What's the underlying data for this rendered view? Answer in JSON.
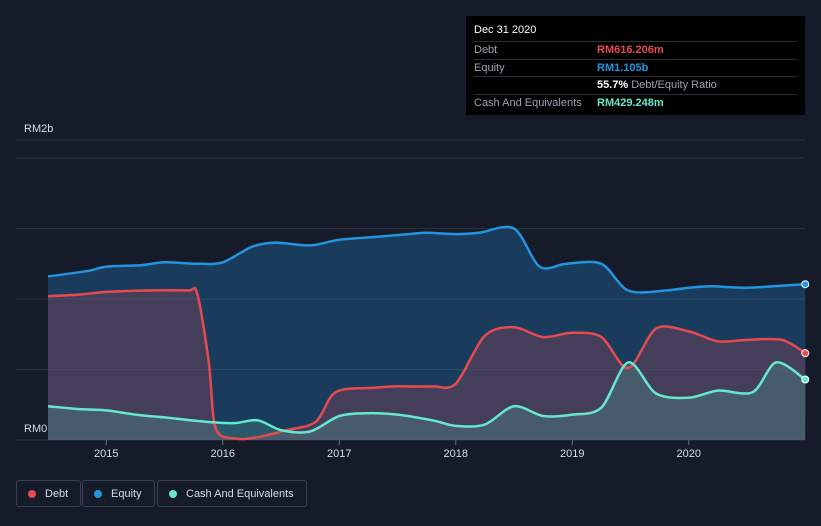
{
  "chart_data": {
    "type": "area",
    "y_labels": [
      "RM2b",
      "RM0"
    ],
    "ylim": [
      0,
      2.0
    ],
    "y_unit": "RM billions",
    "x_ticks": [
      "2015",
      "2016",
      "2017",
      "2018",
      "2019",
      "2020"
    ],
    "series": [
      {
        "name": "Equity",
        "color": "#2394df",
        "points": [
          [
            2014.5,
            1.16
          ],
          [
            2014.85,
            1.2
          ],
          [
            2015.0,
            1.23
          ],
          [
            2015.3,
            1.24
          ],
          [
            2015.5,
            1.26
          ],
          [
            2015.8,
            1.25
          ],
          [
            2016.0,
            1.26
          ],
          [
            2016.25,
            1.37
          ],
          [
            2016.45,
            1.4
          ],
          [
            2016.75,
            1.38
          ],
          [
            2017.0,
            1.42
          ],
          [
            2017.3,
            1.44
          ],
          [
            2017.6,
            1.46
          ],
          [
            2017.75,
            1.47
          ],
          [
            2018.0,
            1.46
          ],
          [
            2018.2,
            1.47
          ],
          [
            2018.5,
            1.5
          ],
          [
            2018.72,
            1.23
          ],
          [
            2018.95,
            1.25
          ],
          [
            2019.25,
            1.25
          ],
          [
            2019.48,
            1.06
          ],
          [
            2019.8,
            1.06
          ],
          [
            2020.0,
            1.08
          ],
          [
            2020.2,
            1.09
          ],
          [
            2020.5,
            1.08
          ],
          [
            2021.0,
            1.105
          ]
        ]
      },
      {
        "name": "Debt",
        "color": "#e64b50",
        "points": [
          [
            2014.5,
            1.02
          ],
          [
            2014.75,
            1.03
          ],
          [
            2015.0,
            1.05
          ],
          [
            2015.35,
            1.06
          ],
          [
            2015.7,
            1.06
          ],
          [
            2015.78,
            1.04
          ],
          [
            2015.88,
            0.55
          ],
          [
            2015.94,
            0.08
          ],
          [
            2016.12,
            0.01
          ],
          [
            2016.3,
            0.02
          ],
          [
            2016.55,
            0.07
          ],
          [
            2016.8,
            0.13
          ],
          [
            2016.97,
            0.34
          ],
          [
            2017.3,
            0.37
          ],
          [
            2017.5,
            0.38
          ],
          [
            2017.8,
            0.38
          ],
          [
            2018.0,
            0.4
          ],
          [
            2018.25,
            0.74
          ],
          [
            2018.5,
            0.8
          ],
          [
            2018.75,
            0.73
          ],
          [
            2019.0,
            0.76
          ],
          [
            2019.25,
            0.73
          ],
          [
            2019.48,
            0.51
          ],
          [
            2019.72,
            0.79
          ],
          [
            2020.0,
            0.77
          ],
          [
            2020.25,
            0.7
          ],
          [
            2020.5,
            0.71
          ],
          [
            2020.8,
            0.71
          ],
          [
            2021.0,
            0.616
          ]
        ]
      },
      {
        "name": "Cash And Equivalents",
        "color": "#67e8cd",
        "points": [
          [
            2014.5,
            0.24
          ],
          [
            2014.75,
            0.22
          ],
          [
            2015.0,
            0.21
          ],
          [
            2015.25,
            0.18
          ],
          [
            2015.5,
            0.16
          ],
          [
            2015.85,
            0.13
          ],
          [
            2016.1,
            0.12
          ],
          [
            2016.3,
            0.14
          ],
          [
            2016.5,
            0.07
          ],
          [
            2016.75,
            0.06
          ],
          [
            2017.0,
            0.17
          ],
          [
            2017.25,
            0.19
          ],
          [
            2017.5,
            0.18
          ],
          [
            2017.8,
            0.14
          ],
          [
            2018.0,
            0.1
          ],
          [
            2018.25,
            0.11
          ],
          [
            2018.5,
            0.24
          ],
          [
            2018.75,
            0.17
          ],
          [
            2019.0,
            0.18
          ],
          [
            2019.25,
            0.23
          ],
          [
            2019.48,
            0.55
          ],
          [
            2019.72,
            0.33
          ],
          [
            2020.0,
            0.3
          ],
          [
            2020.25,
            0.35
          ],
          [
            2020.55,
            0.34
          ],
          [
            2020.75,
            0.55
          ],
          [
            2021.0,
            0.429
          ]
        ]
      }
    ],
    "grid": true,
    "tooltip": {
      "date": "Dec 31 2020",
      "rows": [
        {
          "label": "Debt",
          "value": "RM616.206m",
          "color": "#e64b50"
        },
        {
          "label": "Equity",
          "value": "RM1.105b",
          "color": "#2394df"
        },
        {
          "label": "",
          "value": "55.7%",
          "value_suffix": "Debt/Equity Ratio",
          "color": "#ffffff"
        },
        {
          "label": "Cash And Equivalents",
          "value": "RM429.248m",
          "color": "#67e8cd"
        }
      ]
    },
    "legend": [
      {
        "label": "Debt",
        "color": "#e64b50"
      },
      {
        "label": "Equity",
        "color": "#2394df"
      },
      {
        "label": "Cash And Equivalents",
        "color": "#67e8cd"
      }
    ]
  }
}
